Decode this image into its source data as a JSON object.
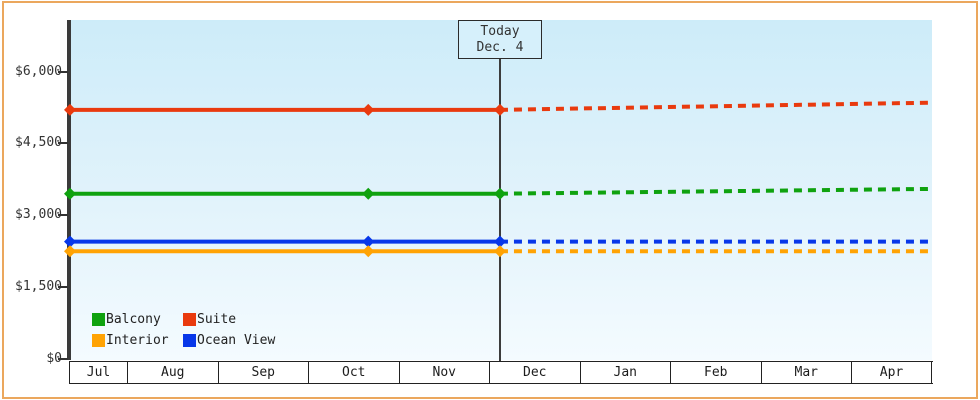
{
  "window": {
    "background_color": "#ffffff",
    "frame_border_color": "#eba75d"
  },
  "today_box": {
    "line1": "Today",
    "line2": "Dec. 4"
  },
  "legend": {
    "items": [
      {
        "label": "Balcony",
        "color": "#0fa20f"
      },
      {
        "label": "Suite",
        "color": "#e93a0e"
      },
      {
        "label": "Interior",
        "color": "#ffa304"
      },
      {
        "label": "Ocean View",
        "color": "#0737e9"
      }
    ]
  },
  "chart_data": {
    "type": "line",
    "title": "",
    "grid": false,
    "legend_position": "bottom-left",
    "x_axis": {
      "tick_labels": [
        "Jul",
        "Aug",
        "Sep",
        "Oct",
        "Nov",
        "Dec",
        "Jan",
        "Feb",
        "Mar",
        "Apr"
      ]
    },
    "y_axis": {
      "tick_labels": [
        "$0",
        "$1,500",
        "$3,000",
        "$4,500",
        "$6,000"
      ],
      "tick_values": [
        0,
        1500,
        3000,
        4500,
        6000
      ],
      "ylim": [
        0,
        7075
      ]
    },
    "today": {
      "x_frac": 0.4988,
      "date_label": "Dec. 4"
    },
    "series": [
      {
        "name": "Suite",
        "color": "#e93a0e",
        "observed_points": [
          {
            "x_frac": 0.0,
            "value": 5200
          },
          {
            "x_frac": 0.346,
            "value": 5200
          },
          {
            "x_frac": 0.4988,
            "value": 5200
          }
        ],
        "forecast": {
          "style": "dashed",
          "end_x_frac": 1.0,
          "end_value": 5350
        }
      },
      {
        "name": "Balcony",
        "color": "#0fa20f",
        "observed_points": [
          {
            "x_frac": 0.0,
            "value": 3450
          },
          {
            "x_frac": 0.346,
            "value": 3450
          },
          {
            "x_frac": 0.4988,
            "value": 3450
          }
        ],
        "forecast": {
          "style": "dashed",
          "end_x_frac": 1.0,
          "end_value": 3550
        }
      },
      {
        "name": "Ocean View",
        "color": "#0737e9",
        "observed_points": [
          {
            "x_frac": 0.0,
            "value": 2450
          },
          {
            "x_frac": 0.346,
            "value": 2450
          },
          {
            "x_frac": 0.4988,
            "value": 2450
          }
        ],
        "forecast": {
          "style": "dashed",
          "end_x_frac": 1.0,
          "end_value": 2450
        }
      },
      {
        "name": "Interior",
        "color": "#ffa304",
        "observed_points": [
          {
            "x_frac": 0.0,
            "value": 2250
          },
          {
            "x_frac": 0.346,
            "value": 2250
          },
          {
            "x_frac": 0.4988,
            "value": 2250
          }
        ],
        "forecast": {
          "style": "dashed",
          "end_x_frac": 1.0,
          "end_value": 2250
        }
      }
    ]
  }
}
